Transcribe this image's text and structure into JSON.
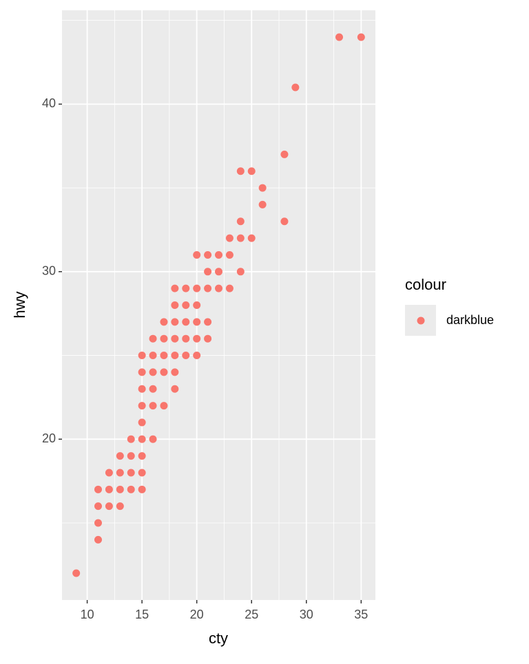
{
  "chart_data": {
    "type": "scatter",
    "x_label": "cty",
    "y_label": "hwy",
    "xlim": [
      7.7,
      36.3
    ],
    "ylim": [
      10.4,
      45.6
    ],
    "xticks": [
      10,
      15,
      20,
      25,
      30,
      35
    ],
    "yticks": [
      20,
      30,
      40
    ],
    "grid": true,
    "legend_position": "right",
    "legend_title": "colour",
    "series": [
      {
        "name": "darkblue",
        "color": "#F8766D",
        "x": [
          9,
          11,
          11,
          11,
          11,
          12,
          12,
          12,
          13,
          13,
          13,
          13,
          14,
          14,
          14,
          14,
          15,
          15,
          15,
          15,
          15,
          15,
          15,
          15,
          15,
          16,
          16,
          16,
          16,
          16,
          16,
          17,
          17,
          17,
          17,
          17,
          18,
          18,
          18,
          18,
          18,
          18,
          18,
          19,
          19,
          19,
          19,
          19,
          20,
          20,
          20,
          20,
          20,
          20,
          21,
          21,
          21,
          21,
          21,
          22,
          22,
          22,
          23,
          23,
          23,
          24,
          24,
          24,
          24,
          25,
          25,
          26,
          26,
          28,
          28,
          29,
          33,
          35
        ],
        "values": [
          12,
          14,
          15,
          16,
          17,
          16,
          17,
          18,
          16,
          17,
          18,
          19,
          17,
          18,
          19,
          20,
          17,
          18,
          19,
          20,
          21,
          22,
          23,
          24,
          25,
          20,
          22,
          23,
          24,
          25,
          26,
          22,
          24,
          25,
          26,
          27,
          23,
          24,
          25,
          26,
          27,
          28,
          29,
          25,
          26,
          27,
          28,
          29,
          25,
          26,
          27,
          28,
          29,
          31,
          26,
          27,
          29,
          30,
          31,
          29,
          30,
          31,
          29,
          31,
          32,
          30,
          32,
          33,
          36,
          32,
          36,
          34,
          35,
          33,
          37,
          41,
          44,
          44
        ]
      }
    ]
  }
}
